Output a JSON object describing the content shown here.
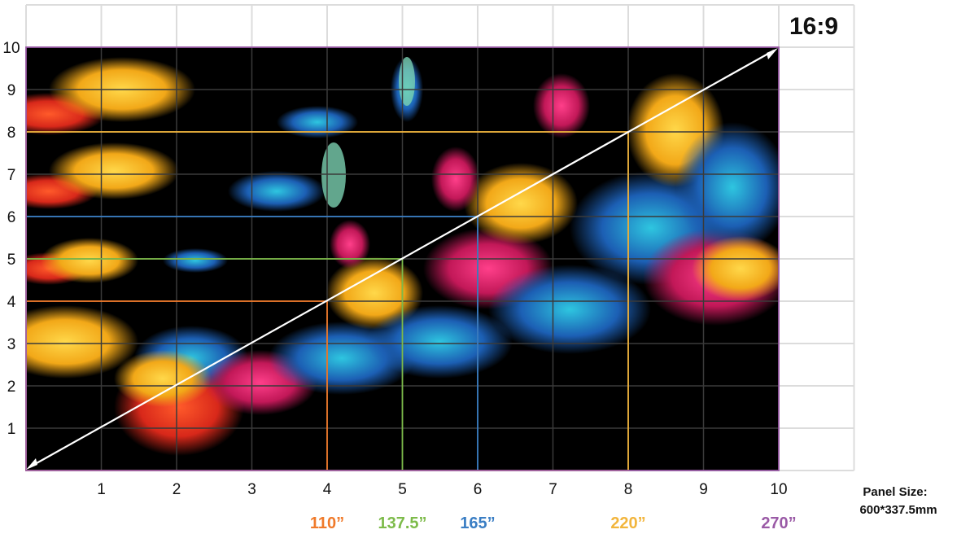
{
  "aspect_ratio": "16:9",
  "x_ticks": [
    "1",
    "2",
    "3",
    "4",
    "5",
    "6",
    "7",
    "8",
    "9",
    "10"
  ],
  "y_ticks": [
    "1",
    "2",
    "3",
    "4",
    "5",
    "6",
    "7",
    "8",
    "9",
    "10"
  ],
  "screen_sizes": [
    {
      "label": "110”",
      "width_units": 4,
      "height_units": 4,
      "color": "#f07a2a"
    },
    {
      "label": "137.5”",
      "width_units": 5,
      "height_units": 5,
      "color": "#7dbb4a"
    },
    {
      "label": "165”",
      "width_units": 6,
      "height_units": 6,
      "color": "#3a7ec4"
    },
    {
      "label": "220”",
      "width_units": 8,
      "height_units": 8,
      "color": "#f2b53c"
    },
    {
      "label": "270”",
      "width_units": 10,
      "height_units": 10,
      "color": "#9a5aa6"
    }
  ],
  "panel_size": {
    "title": "Panel Size:",
    "value": "600*337.5mm"
  },
  "colors": {
    "grid": "#dcdcdc",
    "background_art": "#000000",
    "diagonal": "#ffffff"
  }
}
